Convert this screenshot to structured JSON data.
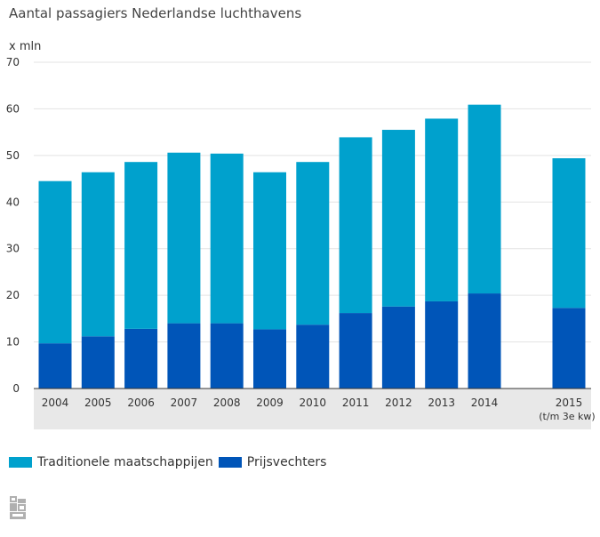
{
  "chart_data": {
    "type": "bar",
    "stacked": true,
    "title": "Aantal passagiers Nederlandse luchthavens",
    "ylabel": "x mln",
    "ylim": [
      0,
      70
    ],
    "yticks": [
      0,
      10,
      20,
      30,
      40,
      50,
      60,
      70
    ],
    "grid": true,
    "legend_position": "bottom-left",
    "categories": [
      {
        "label": "2004",
        "sub": ""
      },
      {
        "label": "2005",
        "sub": ""
      },
      {
        "label": "2006",
        "sub": ""
      },
      {
        "label": "2007",
        "sub": ""
      },
      {
        "label": "2008",
        "sub": ""
      },
      {
        "label": "2009",
        "sub": ""
      },
      {
        "label": "2010",
        "sub": ""
      },
      {
        "label": "2011",
        "sub": ""
      },
      {
        "label": "2012",
        "sub": ""
      },
      {
        "label": "2013",
        "sub": ""
      },
      {
        "label": "2014",
        "sub": ""
      },
      {
        "label": "2015",
        "sub": "(t/m 3e kw)"
      }
    ],
    "series": [
      {
        "name": "Prijsvechters",
        "color": "#0055b8",
        "values": [
          9.7,
          11.2,
          12.8,
          14.0,
          14.0,
          12.7,
          13.7,
          16.2,
          17.6,
          18.7,
          20.4,
          17.3
        ]
      },
      {
        "name": "Traditionele maatschappijen",
        "color": "#00a1cd",
        "values": [
          34.8,
          35.2,
          35.8,
          36.6,
          36.4,
          33.7,
          34.9,
          37.7,
          37.9,
          39.2,
          40.5,
          32.1
        ]
      }
    ]
  },
  "legend": [
    {
      "label": "Traditionele maatschappijen",
      "color": "#00a1cd"
    },
    {
      "label": "Prijsvechters",
      "color": "#0055b8"
    }
  ],
  "logo_icon": "cbs-logo-icon"
}
